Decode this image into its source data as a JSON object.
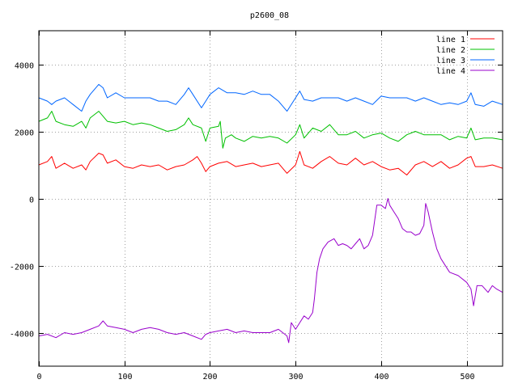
{
  "chart_data": {
    "type": "line",
    "title": "p2600_08",
    "xlabel": "",
    "ylabel": "",
    "xlim": [
      0,
      542
    ],
    "ylim": [
      -5000,
      5000
    ],
    "x_ticks": [
      0,
      100,
      200,
      300,
      400,
      500
    ],
    "y_ticks": [
      -4000,
      -2000,
      0,
      2000,
      4000
    ],
    "grid": true,
    "legend_position": "top-right",
    "series": [
      {
        "name": "line 1",
        "color": "#ff0000",
        "points": [
          [
            0,
            1000
          ],
          [
            10,
            1100
          ],
          [
            15,
            1250
          ],
          [
            20,
            900
          ],
          [
            30,
            1050
          ],
          [
            40,
            900
          ],
          [
            50,
            1000
          ],
          [
            55,
            850
          ],
          [
            60,
            1100
          ],
          [
            70,
            1350
          ],
          [
            75,
            1300
          ],
          [
            80,
            1050
          ],
          [
            90,
            1150
          ],
          [
            100,
            950
          ],
          [
            110,
            900
          ],
          [
            120,
            1000
          ],
          [
            130,
            950
          ],
          [
            140,
            1000
          ],
          [
            150,
            850
          ],
          [
            160,
            950
          ],
          [
            170,
            1000
          ],
          [
            180,
            1150
          ],
          [
            185,
            1250
          ],
          [
            190,
            1050
          ],
          [
            195,
            800
          ],
          [
            200,
            950
          ],
          [
            210,
            1050
          ],
          [
            220,
            1100
          ],
          [
            230,
            950
          ],
          [
            240,
            1000
          ],
          [
            250,
            1050
          ],
          [
            260,
            950
          ],
          [
            270,
            1000
          ],
          [
            280,
            1050
          ],
          [
            290,
            750
          ],
          [
            300,
            1000
          ],
          [
            305,
            1400
          ],
          [
            310,
            1000
          ],
          [
            320,
            900
          ],
          [
            330,
            1100
          ],
          [
            340,
            1250
          ],
          [
            350,
            1050
          ],
          [
            360,
            1000
          ],
          [
            370,
            1200
          ],
          [
            380,
            1000
          ],
          [
            390,
            1100
          ],
          [
            400,
            950
          ],
          [
            410,
            850
          ],
          [
            420,
            900
          ],
          [
            430,
            700
          ],
          [
            440,
            1000
          ],
          [
            450,
            1100
          ],
          [
            460,
            950
          ],
          [
            470,
            1100
          ],
          [
            480,
            900
          ],
          [
            490,
            1000
          ],
          [
            500,
            1200
          ],
          [
            505,
            1250
          ],
          [
            510,
            950
          ],
          [
            520,
            950
          ],
          [
            530,
            1000
          ],
          [
            542,
            900
          ]
        ]
      },
      {
        "name": "line 2",
        "color": "#00c000",
        "points": [
          [
            0,
            2300
          ],
          [
            10,
            2400
          ],
          [
            15,
            2600
          ],
          [
            20,
            2300
          ],
          [
            30,
            2200
          ],
          [
            40,
            2150
          ],
          [
            50,
            2300
          ],
          [
            55,
            2100
          ],
          [
            60,
            2400
          ],
          [
            70,
            2600
          ],
          [
            75,
            2450
          ],
          [
            80,
            2300
          ],
          [
            90,
            2250
          ],
          [
            100,
            2300
          ],
          [
            110,
            2200
          ],
          [
            120,
            2250
          ],
          [
            130,
            2200
          ],
          [
            140,
            2100
          ],
          [
            150,
            2000
          ],
          [
            160,
            2050
          ],
          [
            170,
            2200
          ],
          [
            175,
            2400
          ],
          [
            180,
            2200
          ],
          [
            190,
            2100
          ],
          [
            195,
            1700
          ],
          [
            200,
            2100
          ],
          [
            210,
            2150
          ],
          [
            212,
            2300
          ],
          [
            215,
            1500
          ],
          [
            218,
            1800
          ],
          [
            225,
            1900
          ],
          [
            230,
            1800
          ],
          [
            240,
            1700
          ],
          [
            250,
            1850
          ],
          [
            260,
            1800
          ],
          [
            270,
            1850
          ],
          [
            280,
            1800
          ],
          [
            290,
            1650
          ],
          [
            300,
            1900
          ],
          [
            305,
            2200
          ],
          [
            310,
            1800
          ],
          [
            320,
            2100
          ],
          [
            330,
            2000
          ],
          [
            340,
            2200
          ],
          [
            350,
            1900
          ],
          [
            360,
            1900
          ],
          [
            370,
            2000
          ],
          [
            380,
            1800
          ],
          [
            390,
            1900
          ],
          [
            400,
            1950
          ],
          [
            410,
            1800
          ],
          [
            420,
            1700
          ],
          [
            430,
            1900
          ],
          [
            440,
            2000
          ],
          [
            450,
            1900
          ],
          [
            460,
            1900
          ],
          [
            470,
            1900
          ],
          [
            480,
            1750
          ],
          [
            490,
            1850
          ],
          [
            500,
            1800
          ],
          [
            505,
            2100
          ],
          [
            510,
            1750
          ],
          [
            520,
            1800
          ],
          [
            530,
            1800
          ],
          [
            542,
            1750
          ]
        ]
      },
      {
        "name": "line 3",
        "color": "#0066ff",
        "points": [
          [
            0,
            3000
          ],
          [
            10,
            2900
          ],
          [
            15,
            2800
          ],
          [
            20,
            2900
          ],
          [
            30,
            3000
          ],
          [
            40,
            2800
          ],
          [
            50,
            2600
          ],
          [
            55,
            2900
          ],
          [
            60,
            3100
          ],
          [
            70,
            3400
          ],
          [
            75,
            3300
          ],
          [
            80,
            3000
          ],
          [
            90,
            3150
          ],
          [
            100,
            3000
          ],
          [
            110,
            3000
          ],
          [
            120,
            3000
          ],
          [
            130,
            3000
          ],
          [
            140,
            2900
          ],
          [
            150,
            2900
          ],
          [
            160,
            2800
          ],
          [
            170,
            3100
          ],
          [
            175,
            3300
          ],
          [
            180,
            3100
          ],
          [
            190,
            2700
          ],
          [
            195,
            2900
          ],
          [
            200,
            3100
          ],
          [
            210,
            3300
          ],
          [
            220,
            3150
          ],
          [
            230,
            3150
          ],
          [
            240,
            3100
          ],
          [
            250,
            3200
          ],
          [
            260,
            3100
          ],
          [
            270,
            3100
          ],
          [
            280,
            2900
          ],
          [
            290,
            2600
          ],
          [
            300,
            3000
          ],
          [
            305,
            3200
          ],
          [
            310,
            2950
          ],
          [
            320,
            2900
          ],
          [
            330,
            3000
          ],
          [
            340,
            3000
          ],
          [
            350,
            3000
          ],
          [
            360,
            2900
          ],
          [
            370,
            3000
          ],
          [
            380,
            2900
          ],
          [
            390,
            2800
          ],
          [
            400,
            3050
          ],
          [
            410,
            3000
          ],
          [
            420,
            3000
          ],
          [
            430,
            3000
          ],
          [
            440,
            2900
          ],
          [
            450,
            3000
          ],
          [
            460,
            2900
          ],
          [
            470,
            2800
          ],
          [
            480,
            2850
          ],
          [
            490,
            2800
          ],
          [
            500,
            2900
          ],
          [
            505,
            3150
          ],
          [
            510,
            2800
          ],
          [
            520,
            2750
          ],
          [
            530,
            2900
          ],
          [
            542,
            2800
          ]
        ]
      },
      {
        "name": "line 4",
        "color": "#9900cc",
        "points": [
          [
            0,
            -4100
          ],
          [
            10,
            -4050
          ],
          [
            20,
            -4150
          ],
          [
            30,
            -4000
          ],
          [
            40,
            -4050
          ],
          [
            50,
            -4000
          ],
          [
            60,
            -3900
          ],
          [
            70,
            -3800
          ],
          [
            75,
            -3650
          ],
          [
            80,
            -3800
          ],
          [
            90,
            -3850
          ],
          [
            100,
            -3900
          ],
          [
            110,
            -4000
          ],
          [
            120,
            -3900
          ],
          [
            130,
            -3850
          ],
          [
            140,
            -3900
          ],
          [
            150,
            -4000
          ],
          [
            160,
            -4050
          ],
          [
            170,
            -4000
          ],
          [
            180,
            -4100
          ],
          [
            190,
            -4200
          ],
          [
            195,
            -4050
          ],
          [
            200,
            -4000
          ],
          [
            210,
            -3950
          ],
          [
            220,
            -3900
          ],
          [
            230,
            -4000
          ],
          [
            240,
            -3950
          ],
          [
            250,
            -4000
          ],
          [
            260,
            -4000
          ],
          [
            270,
            -4000
          ],
          [
            280,
            -3900
          ],
          [
            290,
            -4100
          ],
          [
            292,
            -4300
          ],
          [
            295,
            -3700
          ],
          [
            300,
            -3900
          ],
          [
            305,
            -3700
          ],
          [
            310,
            -3500
          ],
          [
            315,
            -3600
          ],
          [
            320,
            -3400
          ],
          [
            322,
            -3000
          ],
          [
            325,
            -2200
          ],
          [
            328,
            -1800
          ],
          [
            332,
            -1500
          ],
          [
            338,
            -1300
          ],
          [
            345,
            -1200
          ],
          [
            350,
            -1400
          ],
          [
            355,
            -1350
          ],
          [
            360,
            -1400
          ],
          [
            365,
            -1500
          ],
          [
            370,
            -1350
          ],
          [
            375,
            -1200
          ],
          [
            380,
            -1500
          ],
          [
            385,
            -1400
          ],
          [
            390,
            -1100
          ],
          [
            395,
            -200
          ],
          [
            400,
            -200
          ],
          [
            405,
            -300
          ],
          [
            408,
            0
          ],
          [
            410,
            -200
          ],
          [
            415,
            -400
          ],
          [
            420,
            -600
          ],
          [
            425,
            -900
          ],
          [
            430,
            -1000
          ],
          [
            435,
            -1000
          ],
          [
            440,
            -1100
          ],
          [
            445,
            -1050
          ],
          [
            450,
            -800
          ],
          [
            452,
            -150
          ],
          [
            455,
            -400
          ],
          [
            460,
            -1000
          ],
          [
            465,
            -1500
          ],
          [
            470,
            -1800
          ],
          [
            480,
            -2200
          ],
          [
            490,
            -2300
          ],
          [
            500,
            -2500
          ],
          [
            505,
            -2700
          ],
          [
            508,
            -3200
          ],
          [
            512,
            -2600
          ],
          [
            518,
            -2600
          ],
          [
            525,
            -2800
          ],
          [
            530,
            -2600
          ],
          [
            535,
            -2700
          ],
          [
            542,
            -2800
          ]
        ]
      }
    ]
  }
}
